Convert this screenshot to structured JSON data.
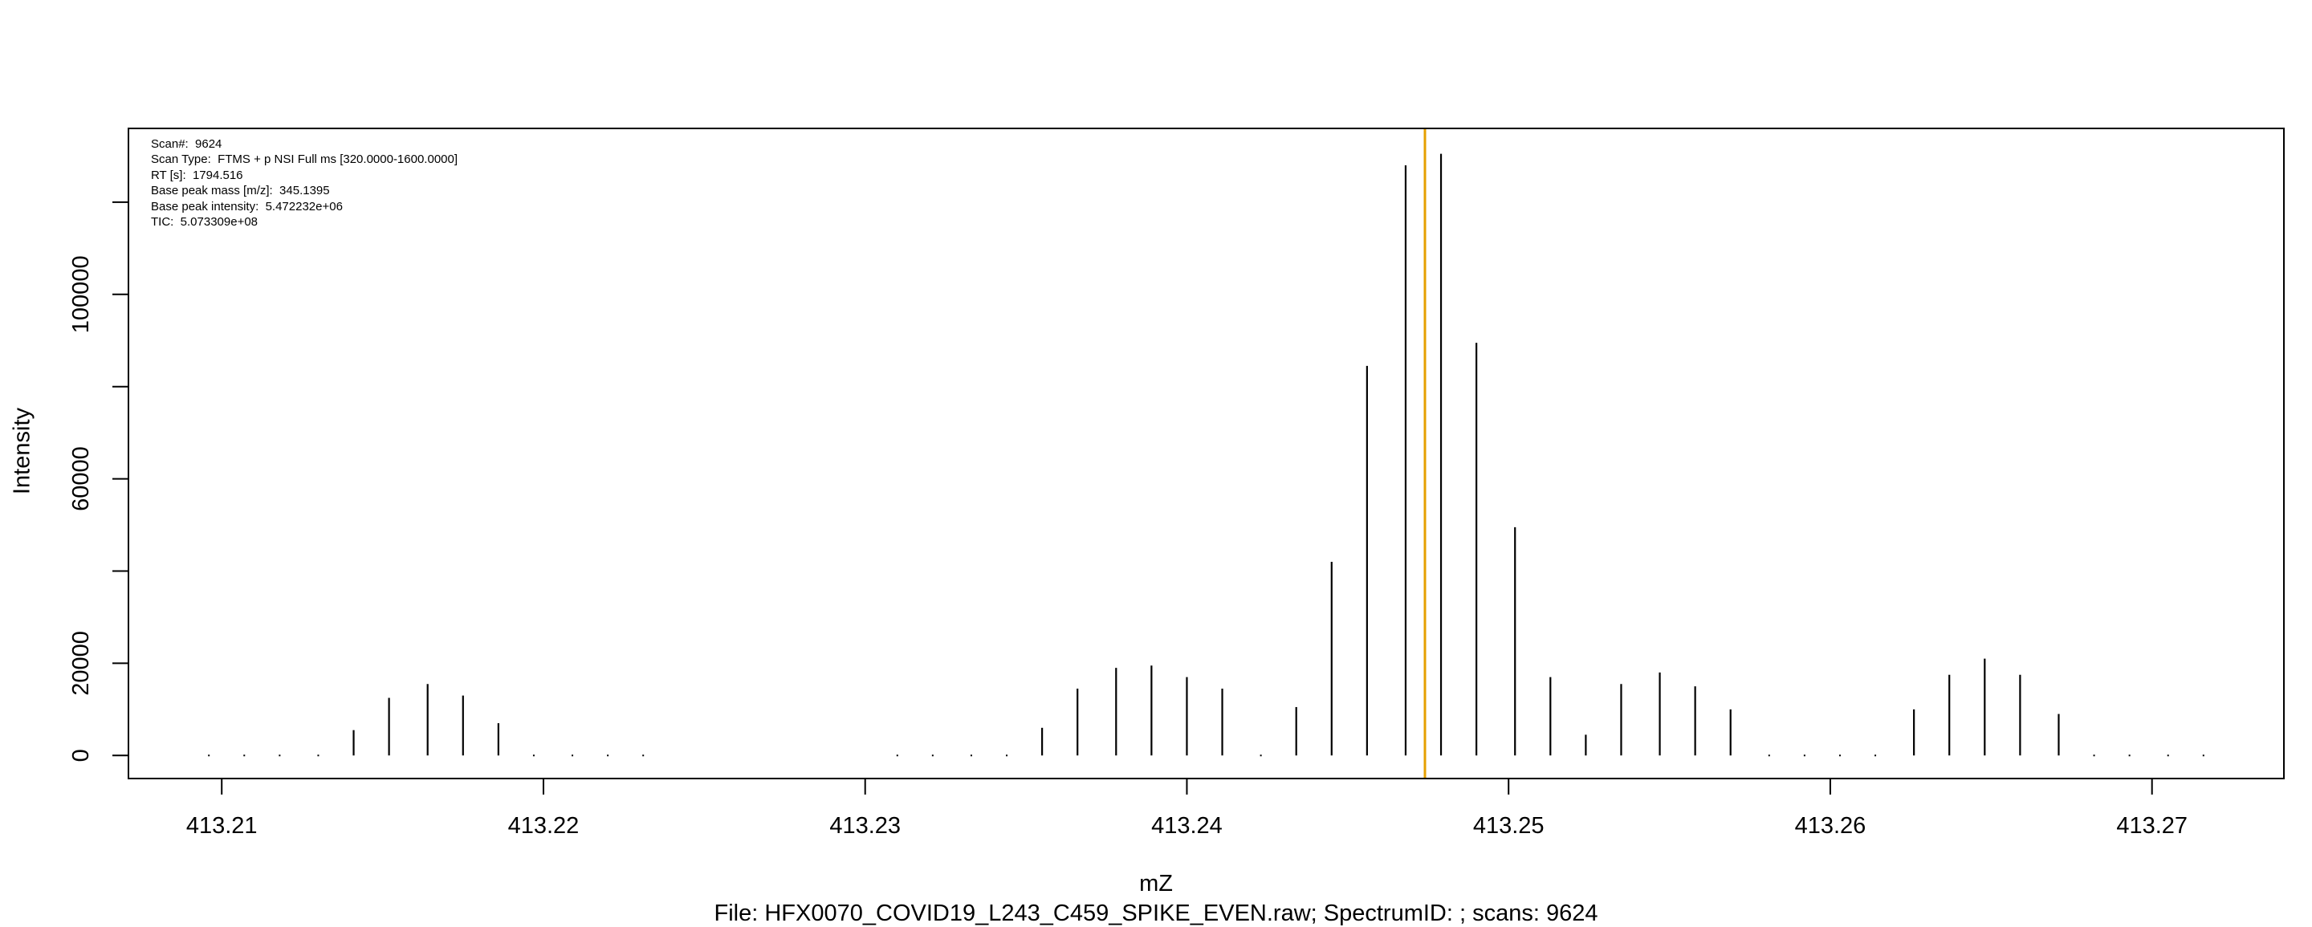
{
  "chart_data": {
    "type": "bar",
    "xlabel": "mZ",
    "ylabel": "Intensity",
    "subtitle": "File: HFX0070_COVID19_L243_C459_SPIKE_EVEN.raw; SpectrumID: ; scans: 9624",
    "xlim": [
      413.2071,
      413.2741
    ],
    "ylim": [
      -5000,
      136000
    ],
    "x_ticks": [
      413.21,
      413.22,
      413.23,
      413.24,
      413.25,
      413.26,
      413.27
    ],
    "x_tick_labels": [
      "413.21",
      "413.22",
      "413.23",
      "413.24",
      "413.25",
      "413.26",
      "413.27"
    ],
    "y_ticks": [
      0,
      20000,
      40000,
      60000,
      80000,
      100000,
      120000
    ],
    "y_tick_labels": [
      "0",
      "20000",
      "",
      "60000",
      "",
      "100000",
      ""
    ],
    "marker_line": {
      "x": 413.2474,
      "color": "#e6a000"
    },
    "grid": false,
    "x": [
      413.2096,
      413.2107,
      413.2118,
      413.213,
      413.2141,
      413.2152,
      413.2164,
      413.2175,
      413.2186,
      413.2197,
      413.2209,
      413.222,
      413.2231,
      413.231,
      413.2321,
      413.2333,
      413.2344,
      413.2355,
      413.2366,
      413.2378,
      413.2389,
      413.24,
      413.2411,
      413.2423,
      413.2434,
      413.2445,
      413.2456,
      413.2468,
      413.2479,
      413.249,
      413.2502,
      413.2513,
      413.2524,
      413.2535,
      413.2547,
      413.2558,
      413.2569,
      413.2581,
      413.2592,
      413.2603,
      413.2614,
      413.2626,
      413.2637,
      413.2648,
      413.2659,
      413.2671,
      413.2682,
      413.2693,
      413.2705,
      413.2716
    ],
    "values": [
      0,
      0,
      0,
      0,
      5500,
      12500,
      15500,
      13000,
      7000,
      0,
      0,
      0,
      0,
      0,
      0,
      0,
      0,
      6000,
      14500,
      19000,
      19500,
      17000,
      14500,
      0,
      10500,
      42000,
      84500,
      128000,
      130500,
      89500,
      49500,
      17000,
      4500,
      15500,
      18000,
      15000,
      10000,
      0,
      0,
      0,
      0,
      10000,
      17500,
      21000,
      17500,
      9000,
      0,
      0,
      0,
      0
    ]
  },
  "scan_info": {
    "scan": "Scan#:  9624",
    "scan_type": "Scan Type:  FTMS + p NSI Full ms [320.0000-1600.0000]",
    "rt": "RT [s]:  1794.516",
    "base_peak_mass": "Base peak mass [m/z]:  345.1395",
    "base_peak_intensity": "Base peak intensity:  5.472232e+06",
    "tic": "TIC:  5.073309e+08"
  }
}
